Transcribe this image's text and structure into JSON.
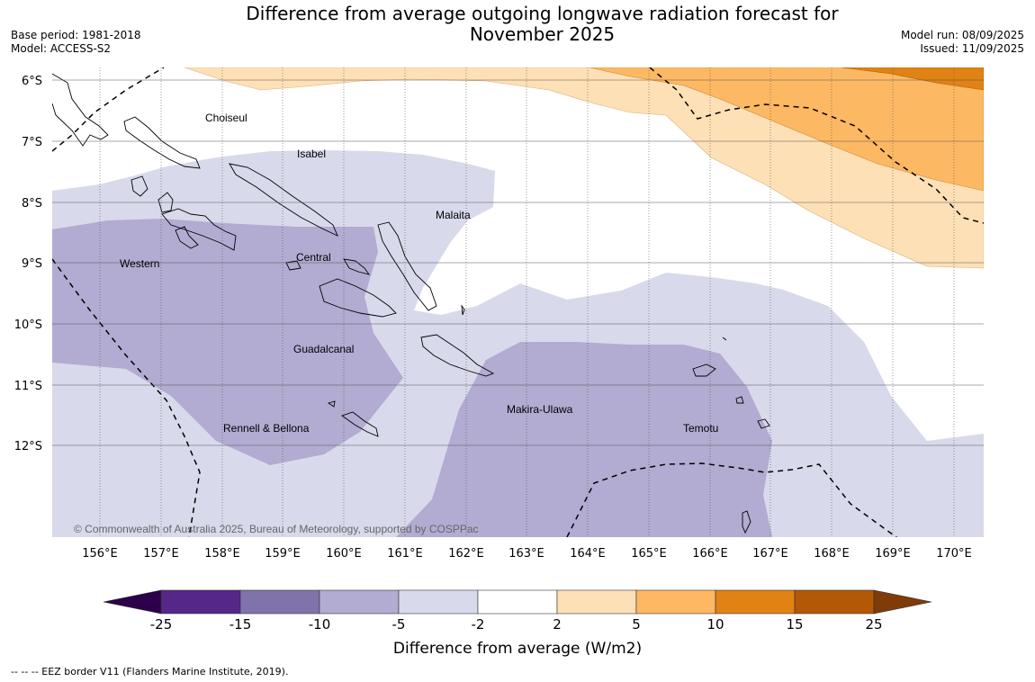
{
  "title_line1": "Difference from average outgoing longwave radiation forecast for",
  "title_line2": "November 2025",
  "base_period": "Base period: 1981-2018",
  "model": "Model: ACCESS-S2",
  "model_run": "Model run: 08/09/2025",
  "issued": "Issued: 11/09/2025",
  "lat_labels": [
    "6°S",
    "7°S",
    "8°S",
    "9°S",
    "10°S",
    "11°S",
    "12°S"
  ],
  "lon_labels": [
    "156°E",
    "157°E",
    "158°E",
    "159°E",
    "160°E",
    "161°E",
    "162°E",
    "163°E",
    "164°E",
    "165°E",
    "166°E",
    "167°E",
    "168°E",
    "169°E",
    "170°E"
  ],
  "provinces": [
    "Choiseul",
    "Isabel",
    "Malaita",
    "Western",
    "Central",
    "Guadalcanal",
    "Rennell & Bellona",
    "Makira-Ulawa",
    "Temotu"
  ],
  "copyright": "© Commonwealth of Australia 2025, Bureau of Meteorology, supported by COSPPac",
  "colorbar": {
    "title": "Difference from average (W/m2)",
    "ticks": [
      "-25",
      "-15",
      "-10",
      "-5",
      "-2",
      "2",
      "5",
      "10",
      "15",
      "25"
    ],
    "colors": [
      "#542788",
      "#8073ac",
      "#b2abd2",
      "#d8daeb",
      "#ffffff",
      "#fee0b6",
      "#fdb863",
      "#e08214",
      "#b35806"
    ],
    "under_color": "#2d004b",
    "over_color": "#7f3b08"
  },
  "footer": "--  --  -- EEZ border V11 (Flanders Marine Institute, 2019)."
}
